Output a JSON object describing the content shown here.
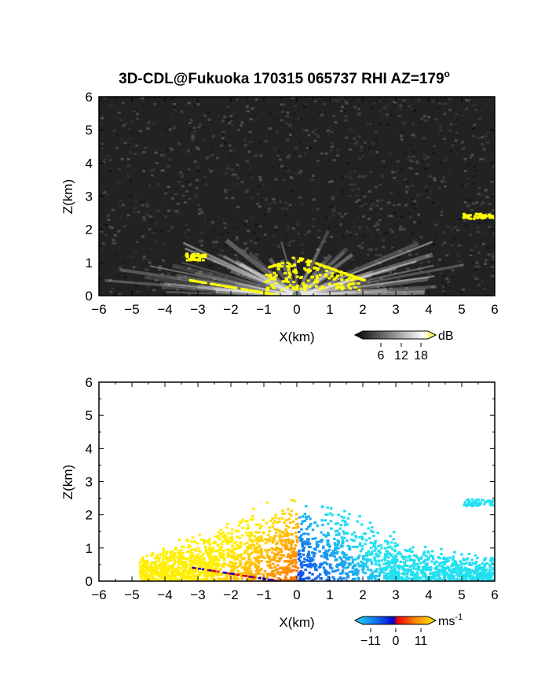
{
  "figure": {
    "title": "3D-CDL@Fukuoka 170315 065737 RHI AZ=179",
    "title_sup": "o"
  },
  "chart_data": [
    {
      "type": "heatmap",
      "panel": "backscatter",
      "xlabel": "X(km)",
      "ylabel": "Z(km)",
      "xlim": [
        -6,
        6
      ],
      "ylim": [
        0,
        6
      ],
      "xticks": [
        "-6",
        "-5",
        "-4",
        "-3",
        "-2",
        "-1",
        "0",
        "1",
        "2",
        "3",
        "4",
        "5",
        "6"
      ],
      "yticks": [
        "0",
        "1",
        "2",
        "3",
        "4",
        "5",
        "6"
      ],
      "colorbar": {
        "unit": "dB",
        "ticks": [
          "6",
          "12",
          "18"
        ],
        "range": [
          0,
          20
        ],
        "colors": [
          "#000000",
          "#ffffff",
          "#ffff00"
        ]
      },
      "features": {
        "background_noise": "dark grey",
        "fan_center_x": 0,
        "fan_max_range_km": 6,
        "strong_echo_color": "#ffff00",
        "strong_echo_regions": [
          {
            "x": [
              -1.0,
              2.0
            ],
            "z": [
              0.2,
              1.2
            ],
            "note": "scattered near-radar returns"
          },
          {
            "x": [
              -3.4,
              -2.8
            ],
            "z": [
              1.1,
              1.3
            ]
          },
          {
            "x": [
              5.0,
              6.0
            ],
            "z": [
              2.35,
              2.5
            ]
          },
          {
            "x": [
              -3.3,
              -0.6
            ],
            "z": [
              0.05,
              0.5
            ],
            "note": "ground clutter line"
          }
        ]
      }
    },
    {
      "type": "heatmap",
      "panel": "doppler_velocity",
      "xlabel": "X(km)",
      "ylabel": "Z(km)",
      "xlim": [
        -6,
        6
      ],
      "ylim": [
        0,
        6
      ],
      "xticks": [
        "-6",
        "-5",
        "-4",
        "-3",
        "-2",
        "-1",
        "0",
        "1",
        "2",
        "3",
        "4",
        "5",
        "6"
      ],
      "yticks": [
        "0",
        "1",
        "2",
        "3",
        "4",
        "5",
        "6"
      ],
      "colorbar": {
        "unit": "ms",
        "unit_sup": "-1",
        "ticks": [
          "−11",
          "0",
          "11"
        ],
        "range": [
          -15,
          15
        ],
        "colors": [
          "#22e0f0",
          "#1060f0",
          "#0000cc",
          "#ee0000",
          "#ff8800",
          "#ffee00"
        ]
      },
      "features": {
        "left_side_velocity_ms": [
          4,
          11
        ],
        "right_side_velocity_ms": [
          -11,
          -4
        ],
        "left_extent": {
          "x": [
            -4.8,
            0
          ],
          "z": [
            0,
            2.5
          ]
        },
        "right_extent": {
          "x": [
            0,
            6
          ],
          "z": [
            0,
            2.5
          ]
        },
        "elevated_layer": {
          "x": [
            5.0,
            6.0
          ],
          "z": [
            2.3,
            2.5
          ],
          "velocity_ms": -11
        }
      }
    }
  ]
}
